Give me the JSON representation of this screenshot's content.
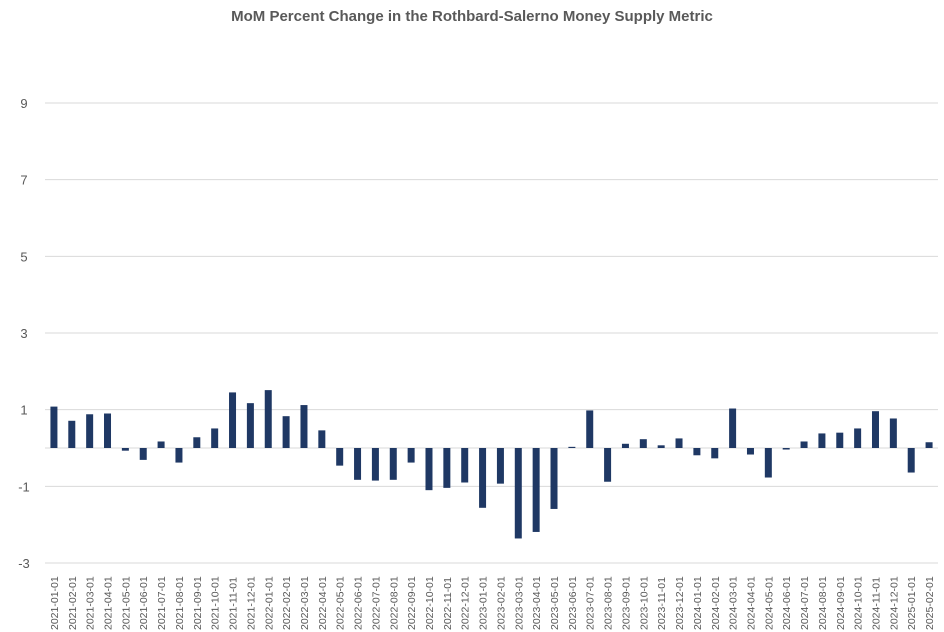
{
  "chart_data": {
    "type": "bar",
    "title": "MoM Percent Change in the Rothbard-Salerno Money Supply Metric",
    "xlabel": "",
    "ylabel": "",
    "ylim": [
      -3,
      9
    ],
    "yticks": [
      -3,
      -1,
      1,
      3,
      5,
      7,
      9
    ],
    "grid": true,
    "color": "#1F3864",
    "categories": [
      "2021-01-01",
      "2021-02-01",
      "2021-03-01",
      "2021-04-01",
      "2021-05-01",
      "2021-06-01",
      "2021-07-01",
      "2021-08-01",
      "2021-09-01",
      "2021-10-01",
      "2021-11-01",
      "2021-12-01",
      "2022-01-01",
      "2022-02-01",
      "2022-03-01",
      "2022-04-01",
      "2022-05-01",
      "2022-06-01",
      "2022-07-01",
      "2022-08-01",
      "2022-09-01",
      "2022-10-01",
      "2022-11-01",
      "2022-12-01",
      "2023-01-01",
      "2023-02-01",
      "2023-03-01",
      "2023-04-01",
      "2023-05-01",
      "2023-06-01",
      "2023-07-01",
      "2023-08-01",
      "2023-09-01",
      "2023-10-01",
      "2023-11-01",
      "2023-12-01",
      "2024-01-01",
      "2024-02-01",
      "2024-03-01",
      "2024-04-01",
      "2024-05-01",
      "2024-06-01",
      "2024-07-01",
      "2024-08-01",
      "2024-09-01",
      "2024-10-01",
      "2024-11-01",
      "2024-12-01",
      "2025-01-01",
      "2025-02-01"
    ],
    "values": [
      1.08,
      0.71,
      0.88,
      0.9,
      -0.07,
      -0.31,
      0.17,
      -0.38,
      0.28,
      0.51,
      1.45,
      1.17,
      1.51,
      0.83,
      1.12,
      0.46,
      -0.46,
      -0.83,
      -0.85,
      -0.83,
      -0.38,
      -1.1,
      -1.04,
      -0.9,
      -1.56,
      -0.93,
      -2.36,
      -2.19,
      -1.59,
      0.03,
      0.98,
      -0.88,
      0.11,
      0.23,
      0.07,
      0.25,
      -0.19,
      -0.27,
      1.03,
      -0.17,
      -0.77,
      -0.04,
      0.17,
      0.38,
      0.4,
      0.51,
      0.96,
      0.77,
      -0.64,
      0.15
    ]
  }
}
